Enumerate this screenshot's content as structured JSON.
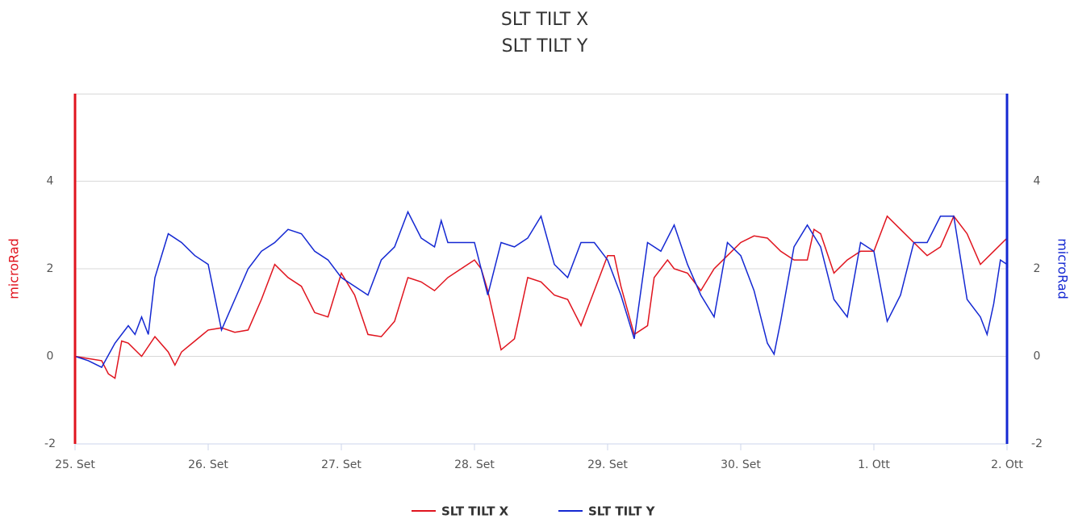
{
  "chart_data": {
    "type": "line",
    "title": "SLT TILT X",
    "subtitle": "SLT TILT Y",
    "y_label": "microRad",
    "y2_label": "microRad",
    "xlim": [
      0,
      7
    ],
    "xticks": [
      {
        "value": 0,
        "label": "25. Set"
      },
      {
        "value": 1,
        "label": "26. Set"
      },
      {
        "value": 2,
        "label": "27. Set"
      },
      {
        "value": 3,
        "label": "28. Set"
      },
      {
        "value": 4,
        "label": "29. Set"
      },
      {
        "value": 5,
        "label": "30. Set"
      },
      {
        "value": 6,
        "label": "1. Ott"
      },
      {
        "value": 7,
        "label": "2. Ott"
      }
    ],
    "ylim": [
      -2,
      6
    ],
    "yticks": [
      -2,
      0,
      2,
      4
    ],
    "y2lim": [
      -2,
      6
    ],
    "y2ticks": [
      -2,
      0,
      2,
      4
    ],
    "grid": true,
    "series": [
      {
        "name": "SLT TILT X",
        "color": "#e0141e",
        "x": [
          0,
          0.1,
          0.2,
          0.25,
          0.3,
          0.35,
          0.4,
          0.5,
          0.6,
          0.7,
          0.75,
          0.8,
          0.9,
          1.0,
          1.1,
          1.2,
          1.3,
          1.4,
          1.5,
          1.6,
          1.7,
          1.8,
          1.9,
          2.0,
          2.1,
          2.2,
          2.3,
          2.4,
          2.5,
          2.6,
          2.7,
          2.8,
          2.9,
          3.0,
          3.05,
          3.1,
          3.2,
          3.3,
          3.4,
          3.5,
          3.6,
          3.7,
          3.8,
          3.9,
          4.0,
          4.05,
          4.1,
          4.2,
          4.3,
          4.35,
          4.45,
          4.5,
          4.6,
          4.7,
          4.8,
          4.9,
          5.0,
          5.1,
          5.2,
          5.3,
          5.4,
          5.5,
          5.55,
          5.6,
          5.7,
          5.8,
          5.9,
          6.0,
          6.1,
          6.2,
          6.3,
          6.4,
          6.5,
          6.6,
          6.65,
          6.7,
          6.8,
          6.9,
          7.0
        ],
        "values": [
          0,
          -0.05,
          -0.1,
          -0.4,
          -0.5,
          0.35,
          0.3,
          0.0,
          0.45,
          0.1,
          -0.2,
          0.1,
          0.35,
          0.6,
          0.65,
          0.55,
          0.6,
          1.3,
          2.1,
          1.8,
          1.6,
          1.0,
          0.9,
          1.9,
          1.4,
          0.5,
          0.45,
          0.8,
          1.8,
          1.7,
          1.5,
          1.8,
          2.0,
          2.2,
          2.0,
          1.5,
          0.15,
          0.4,
          1.8,
          1.7,
          1.4,
          1.3,
          0.7,
          1.5,
          2.3,
          2.3,
          1.6,
          0.5,
          0.7,
          1.8,
          2.2,
          2.0,
          1.9,
          1.5,
          2.0,
          2.3,
          2.6,
          2.75,
          2.7,
          2.4,
          2.2,
          2.2,
          2.9,
          2.8,
          1.9,
          2.2,
          2.4,
          2.4,
          3.2,
          2.9,
          2.6,
          2.3,
          2.5,
          3.2,
          3.0,
          2.8,
          2.1,
          2.4,
          2.7
        ]
      },
      {
        "name": "SLT TILT Y",
        "color": "#1428d2",
        "axis": "y2",
        "x": [
          0,
          0.1,
          0.2,
          0.3,
          0.4,
          0.45,
          0.5,
          0.55,
          0.6,
          0.7,
          0.8,
          0.9,
          1.0,
          1.1,
          1.2,
          1.3,
          1.4,
          1.5,
          1.6,
          1.7,
          1.8,
          1.9,
          2.0,
          2.1,
          2.2,
          2.3,
          2.4,
          2.5,
          2.6,
          2.7,
          2.75,
          2.8,
          2.9,
          3.0,
          3.1,
          3.2,
          3.3,
          3.4,
          3.5,
          3.6,
          3.7,
          3.8,
          3.9,
          4.0,
          4.1,
          4.2,
          4.3,
          4.4,
          4.5,
          4.6,
          4.7,
          4.8,
          4.9,
          5.0,
          5.1,
          5.2,
          5.25,
          5.3,
          5.4,
          5.5,
          5.6,
          5.7,
          5.8,
          5.9,
          6.0,
          6.1,
          6.2,
          6.3,
          6.4,
          6.5,
          6.6,
          6.7,
          6.8,
          6.85,
          6.9,
          6.95,
          7.0
        ],
        "values": [
          0,
          -0.1,
          -0.25,
          0.3,
          0.7,
          0.5,
          0.9,
          0.5,
          1.8,
          2.8,
          2.6,
          2.3,
          2.1,
          0.6,
          1.3,
          2.0,
          2.4,
          2.6,
          2.9,
          2.8,
          2.4,
          2.2,
          1.8,
          1.6,
          1.4,
          2.2,
          2.5,
          3.3,
          2.7,
          2.5,
          3.1,
          2.6,
          2.6,
          2.6,
          1.4,
          2.6,
          2.5,
          2.7,
          3.2,
          2.1,
          1.8,
          2.6,
          2.6,
          2.2,
          1.4,
          0.4,
          2.6,
          2.4,
          3.0,
          2.1,
          1.4,
          0.9,
          2.6,
          2.3,
          1.5,
          0.3,
          0.05,
          0.8,
          2.5,
          3.0,
          2.5,
          1.3,
          0.9,
          2.6,
          2.4,
          0.8,
          1.4,
          2.6,
          2.6,
          3.2,
          3.2,
          1.3,
          0.9,
          0.5,
          1.2,
          2.2,
          2.1
        ]
      }
    ]
  }
}
